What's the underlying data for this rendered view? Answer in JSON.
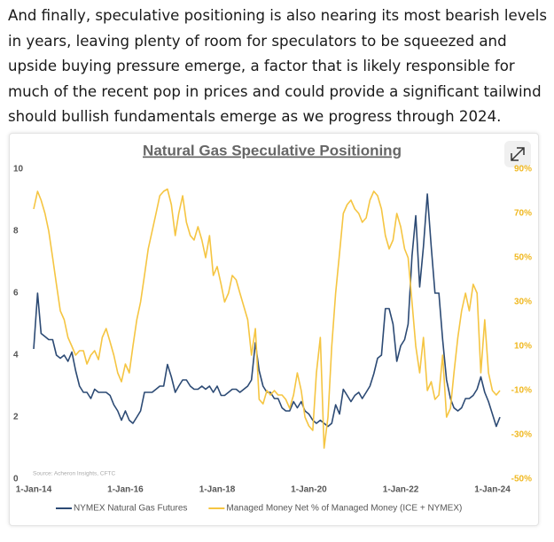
{
  "paragraph": "And finally, speculative positioning is also nearing its most bearish levels in years, leaving plenty of room for speculators to be squeezed and upside buying pressure emerge, a factor that is likely responsible for much of the recent pop in prices and could provide a significant tailwind should bullish fundamentals emerge as we progress through 2024.",
  "chart_data": {
    "type": "line",
    "title": "Natural Gas Speculative Positioning",
    "source": "Source: Acheron Insights, CFTC",
    "x": [
      "2014-01-01",
      "2014-02-01",
      "2014-03-01",
      "2014-04-01",
      "2014-05-01",
      "2014-06-01",
      "2014-07-01",
      "2014-08-01",
      "2014-09-01",
      "2014-10-01",
      "2014-11-01",
      "2014-12-01",
      "2015-01-01",
      "2015-02-01",
      "2015-03-01",
      "2015-04-01",
      "2015-05-01",
      "2015-06-01",
      "2015-07-01",
      "2015-08-01",
      "2015-09-01",
      "2015-10-01",
      "2015-11-01",
      "2015-12-01",
      "2016-01-01",
      "2016-02-01",
      "2016-03-01",
      "2016-04-01",
      "2016-05-01",
      "2016-06-01",
      "2016-07-01",
      "2016-08-01",
      "2016-09-01",
      "2016-10-01",
      "2016-11-01",
      "2016-12-01",
      "2017-01-01",
      "2017-02-01",
      "2017-03-01",
      "2017-04-01",
      "2017-05-01",
      "2017-06-01",
      "2017-07-01",
      "2017-08-01",
      "2017-09-01",
      "2017-10-01",
      "2017-11-01",
      "2017-12-01",
      "2018-01-01",
      "2018-02-01",
      "2018-03-01",
      "2018-04-01",
      "2018-05-01",
      "2018-06-01",
      "2018-07-01",
      "2018-08-01",
      "2018-09-01",
      "2018-10-01",
      "2018-11-01",
      "2018-12-01",
      "2019-01-01",
      "2019-02-01",
      "2019-03-01",
      "2019-04-01",
      "2019-05-01",
      "2019-06-01",
      "2019-07-01",
      "2019-08-01",
      "2019-09-01",
      "2019-10-01",
      "2019-11-01",
      "2019-12-01",
      "2020-01-01",
      "2020-02-01",
      "2020-03-01",
      "2020-04-01",
      "2020-05-01",
      "2020-06-01",
      "2020-07-01",
      "2020-08-01",
      "2020-09-01",
      "2020-10-01",
      "2020-11-01",
      "2020-12-01",
      "2021-01-01",
      "2021-02-01",
      "2021-03-01",
      "2021-04-01",
      "2021-05-01",
      "2021-06-01",
      "2021-07-01",
      "2021-08-01",
      "2021-09-01",
      "2021-10-01",
      "2021-11-01",
      "2021-12-01",
      "2022-01-01",
      "2022-02-01",
      "2022-03-01",
      "2022-04-01",
      "2022-05-01",
      "2022-06-01",
      "2022-07-01",
      "2022-08-01",
      "2022-09-01",
      "2022-10-01",
      "2022-11-01",
      "2022-12-01",
      "2023-01-01",
      "2023-02-01",
      "2023-03-01",
      "2023-04-01",
      "2023-05-01",
      "2023-06-01",
      "2023-07-01",
      "2023-08-01",
      "2023-09-01",
      "2023-10-01",
      "2023-11-01",
      "2023-12-01",
      "2024-01-01",
      "2024-02-01",
      "2024-03-01"
    ],
    "series": [
      {
        "name": "NYMEX Natural Gas Futures",
        "color": "#2c4a74",
        "axis": "y",
        "values": [
          4.2,
          6.0,
          4.7,
          4.6,
          4.5,
          4.5,
          4.0,
          3.9,
          4.0,
          3.8,
          4.1,
          3.5,
          3.0,
          2.8,
          2.8,
          2.6,
          2.9,
          2.8,
          2.8,
          2.8,
          2.7,
          2.4,
          2.2,
          1.9,
          2.2,
          1.9,
          1.8,
          2.0,
          2.2,
          2.8,
          2.8,
          2.8,
          2.9,
          3.0,
          3.0,
          3.7,
          3.3,
          2.8,
          3.0,
          3.2,
          3.2,
          3.0,
          2.9,
          2.9,
          3.0,
          2.9,
          3.0,
          2.8,
          3.0,
          2.7,
          2.7,
          2.8,
          2.9,
          2.9,
          2.8,
          2.9,
          3.0,
          3.2,
          4.4,
          3.5,
          3.0,
          2.8,
          2.8,
          2.6,
          2.6,
          2.3,
          2.2,
          2.2,
          2.5,
          2.3,
          2.5,
          2.2,
          2.1,
          1.9,
          1.8,
          1.9,
          1.8,
          1.7,
          1.8,
          2.4,
          2.1,
          2.9,
          2.7,
          2.5,
          2.7,
          2.8,
          2.6,
          2.8,
          3.0,
          3.4,
          3.9,
          4.0,
          5.5,
          5.5,
          5.0,
          3.8,
          4.3,
          4.5,
          5.0,
          7.2,
          8.5,
          6.2,
          7.5,
          9.2,
          7.5,
          6.0,
          6.0,
          4.5,
          3.2,
          2.6,
          2.3,
          2.2,
          2.3,
          2.6,
          2.6,
          2.7,
          2.9,
          3.3,
          2.8,
          2.5,
          2.1,
          1.7,
          2.0
        ]
      },
      {
        "name": "Managed Money Net % of Managed Money (ICE + NYMEX)",
        "color": "#f5c542",
        "axis": "y2",
        "values": [
          72,
          80,
          76,
          70,
          62,
          50,
          38,
          26,
          22,
          14,
          10,
          6,
          8,
          8,
          2,
          6,
          8,
          4,
          14,
          18,
          12,
          6,
          -2,
          -6,
          2,
          -2,
          10,
          22,
          30,
          42,
          54,
          62,
          70,
          78,
          80,
          81,
          74,
          60,
          70,
          78,
          66,
          60,
          58,
          64,
          58,
          50,
          60,
          42,
          46,
          38,
          30,
          34,
          42,
          40,
          34,
          28,
          22,
          6,
          18,
          -14,
          -16,
          -10,
          -12,
          -10,
          -12,
          -12,
          -14,
          -18,
          -12,
          -2,
          -10,
          -22,
          -26,
          -28,
          -2,
          14,
          -36,
          -22,
          10,
          34,
          52,
          70,
          74,
          76,
          72,
          70,
          66,
          68,
          76,
          80,
          78,
          72,
          60,
          54,
          58,
          70,
          64,
          54,
          50,
          30,
          10,
          -2,
          14,
          -10,
          -6,
          -14,
          -12,
          6,
          -22,
          -18,
          -2,
          14,
          26,
          34,
          26,
          38,
          34,
          -2,
          22,
          -2,
          -10,
          -12,
          -10
        ]
      }
    ],
    "xlim": [
      "2014-01-01",
      "2024-03-01"
    ],
    "xticks": [
      {
        "value": "2014-01-01",
        "label": "1-Jan-14"
      },
      {
        "value": "2016-01-01",
        "label": "1-Jan-16"
      },
      {
        "value": "2018-01-01",
        "label": "1-Jan-18"
      },
      {
        "value": "2020-01-01",
        "label": "1-Jan-20"
      },
      {
        "value": "2022-01-01",
        "label": "1-Jan-22"
      },
      {
        "value": "2024-01-01",
        "label": "1-Jan-24"
      }
    ],
    "ylim": [
      0,
      10
    ],
    "yticks": [
      0,
      2,
      4,
      6,
      8,
      10
    ],
    "y2lim": [
      -50,
      90
    ],
    "y2ticks": [
      {
        "value": -50,
        "label": "-50%"
      },
      {
        "value": -30,
        "label": "-30%"
      },
      {
        "value": -10,
        "label": "-10%"
      },
      {
        "value": 10,
        "label": "10%"
      },
      {
        "value": 30,
        "label": "30%"
      },
      {
        "value": 50,
        "label": "50%"
      },
      {
        "value": 70,
        "label": "70%"
      },
      {
        "value": 90,
        "label": "90%"
      }
    ],
    "grid": false,
    "legend": "bottom"
  }
}
